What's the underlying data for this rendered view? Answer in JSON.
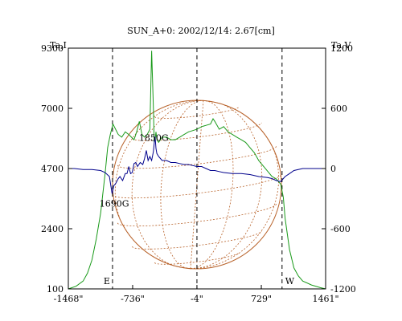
{
  "chart_data": {
    "type": "line",
    "title": "SUN_A+0: 2002/12/14: 2.67[cm]",
    "left_axis_label": "Ta,I",
    "right_axis_label": "Ta,V",
    "x_ticks": [
      "-1468\"",
      "-736\"",
      "-4\"",
      "729\"",
      "1461\""
    ],
    "x_tick_values": [
      -1468,
      -736,
      -4,
      729,
      1461
    ],
    "xlim": [
      -1468,
      1461
    ],
    "left_ylim": [
      100,
      9300
    ],
    "left_ticks": [
      100,
      2400,
      4700,
      7000,
      9300
    ],
    "right_ylim": [
      -1200,
      1200
    ],
    "right_ticks": [
      -1200,
      -600,
      0,
      600,
      1200
    ],
    "right_tick_labels": [
      "-1200",
      "-600",
      "0",
      "600",
      "1200"
    ],
    "limb_markers": [
      {
        "label": "E",
        "x": -965
      },
      {
        "label": "W",
        "x": 965
      }
    ],
    "center_marker_x": -4,
    "annotations": [
      {
        "text": "1850G",
        "x": -495,
        "y_I": 5760
      },
      {
        "text": "1690G",
        "x": -945,
        "y_I": 3250
      }
    ],
    "series": [
      {
        "name": "I",
        "axis": "left",
        "color": "#1a9a1a",
        "x": [
          -1468,
          -1380,
          -1300,
          -1250,
          -1200,
          -1150,
          -1100,
          -1050,
          -1020,
          -990,
          -960,
          -930,
          -900,
          -860,
          -820,
          -780,
          -750,
          -720,
          -690,
          -660,
          -630,
          -600,
          -570,
          -540,
          -520,
          -500,
          -490,
          -480,
          -470,
          -460,
          -440,
          -420,
          -400,
          -350,
          -300,
          -250,
          -200,
          -150,
          -100,
          -50,
          -4,
          50,
          100,
          150,
          180,
          200,
          250,
          300,
          350,
          400,
          450,
          500,
          550,
          600,
          650,
          700,
          750,
          800,
          850,
          900,
          950,
          980,
          1000,
          1050,
          1100,
          1150,
          1200,
          1300,
          1400,
          1461
        ],
        "y": [
          100,
          200,
          400,
          700,
          1200,
          2000,
          3000,
          4500,
          5500,
          6000,
          6400,
          6200,
          6000,
          5900,
          6100,
          6000,
          5900,
          5800,
          6100,
          6500,
          6000,
          5900,
          6000,
          6200,
          9200,
          7000,
          5700,
          5800,
          6100,
          5800,
          5700,
          5800,
          5900,
          5900,
          5800,
          5800,
          5900,
          6000,
          6100,
          6150,
          6200,
          6300,
          6350,
          6400,
          6600,
          6500,
          6200,
          6300,
          6100,
          6000,
          5900,
          5800,
          5700,
          5500,
          5300,
          5000,
          4800,
          4600,
          4400,
          4300,
          4100,
          3600,
          2800,
          1600,
          900,
          600,
          400,
          250,
          150,
          100
        ]
      },
      {
        "name": "V",
        "axis": "right",
        "color": "#00008b",
        "x": [
          -1468,
          -1400,
          -1300,
          -1200,
          -1100,
          -1050,
          -1000,
          -970,
          -950,
          -930,
          -900,
          -880,
          -850,
          -820,
          -800,
          -780,
          -760,
          -740,
          -720,
          -700,
          -680,
          -650,
          -620,
          -600,
          -580,
          -560,
          -540,
          -520,
          -500,
          -490,
          -480,
          -470,
          -460,
          -440,
          -420,
          -400,
          -350,
          -300,
          -250,
          -200,
          -150,
          -100,
          -50,
          -4,
          50,
          100,
          150,
          200,
          250,
          300,
          400,
          500,
          600,
          700,
          800,
          850,
          900,
          950,
          980,
          1000,
          1050,
          1100,
          1200,
          1300,
          1400,
          1461
        ],
        "y": [
          0,
          0,
          -10,
          -10,
          -20,
          -40,
          -80,
          -250,
          -170,
          -150,
          -100,
          -80,
          -120,
          -50,
          -50,
          20,
          -50,
          -40,
          50,
          60,
          20,
          60,
          40,
          100,
          180,
          80,
          120,
          80,
          170,
          250,
          320,
          200,
          150,
          120,
          100,
          80,
          80,
          60,
          60,
          50,
          40,
          40,
          30,
          20,
          20,
          0,
          -20,
          -20,
          -30,
          -40,
          -50,
          -50,
          -60,
          -80,
          -90,
          -100,
          -120,
          -130,
          -100,
          -80,
          -50,
          -20,
          0,
          0,
          0,
          0
        ]
      }
    ]
  }
}
